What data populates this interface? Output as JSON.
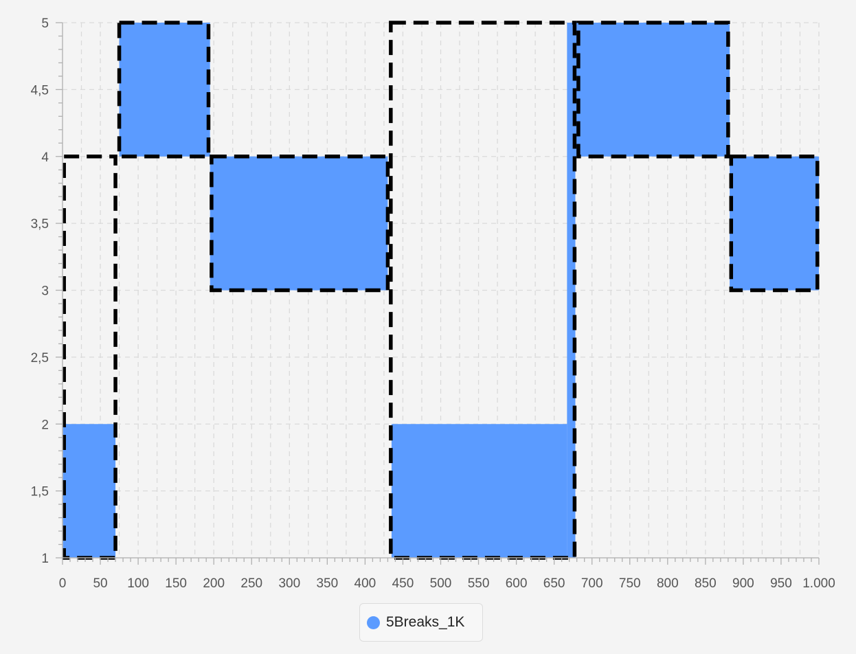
{
  "chart_data": {
    "type": "area",
    "xlim": [
      0,
      1000
    ],
    "ylim": [
      1,
      5
    ],
    "x_tick_labels": [
      "0",
      "50",
      "100",
      "150",
      "200",
      "250",
      "300",
      "350",
      "400",
      "450",
      "500",
      "550",
      "600",
      "650",
      "700",
      "750",
      "800",
      "850",
      "900",
      "950",
      "1.000"
    ],
    "y_tick_labels": [
      "1",
      "1,5",
      "2",
      "2,5",
      "3",
      "3,5",
      "4",
      "4,5",
      "5"
    ],
    "grid": true,
    "legend_position": "bottom-center",
    "series": [
      {
        "name": "5Breaks_1K",
        "color": "#5b9bff",
        "segments": [
          {
            "x_start": 0,
            "x_end": 70,
            "y_low": 1,
            "y_high": 2
          },
          {
            "x_start": 75,
            "x_end": 195,
            "y_low": 4,
            "y_high": 5
          },
          {
            "x_start": 195,
            "x_end": 430,
            "y_low": 3,
            "y_high": 4
          },
          {
            "x_start": 435,
            "x_end": 667,
            "y_low": 1,
            "y_high": 2
          },
          {
            "x_start": 667,
            "x_end": 678,
            "y_low": 1,
            "y_high": 5
          },
          {
            "x_start": 678,
            "x_end": 882,
            "y_low": 4,
            "y_high": 5
          },
          {
            "x_start": 882,
            "x_end": 1000,
            "y_low": 3,
            "y_high": 4
          }
        ]
      }
    ],
    "overlay_boxes": [
      {
        "x_start": 2,
        "x_end": 70,
        "y_low": 1,
        "y_high": 4
      },
      {
        "x_start": 75,
        "x_end": 193,
        "y_low": 4,
        "y_high": 5
      },
      {
        "x_start": 197,
        "x_end": 430,
        "y_low": 3,
        "y_high": 4
      },
      {
        "x_start": 434,
        "x_end": 677,
        "y_low": 1,
        "y_high": 5
      },
      {
        "x_start": 682,
        "x_end": 880,
        "y_low": 4,
        "y_high": 5
      },
      {
        "x_start": 884,
        "x_end": 998,
        "y_low": 3,
        "y_high": 4
      }
    ]
  },
  "legend": {
    "label": "5Breaks_1K",
    "color": "#5b9bff"
  }
}
